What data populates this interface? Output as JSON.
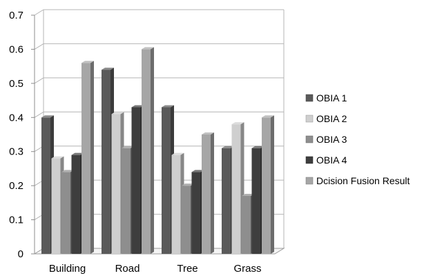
{
  "chart_data": {
    "type": "bar",
    "title": "",
    "xlabel": "",
    "ylabel": "",
    "ylim": [
      0,
      0.7
    ],
    "yticks": [
      "0",
      "0.1",
      "0.2",
      "0.3",
      "0.4",
      "0.5",
      "0.6",
      "0.7"
    ],
    "categories": [
      "Building",
      "Road",
      "Tree",
      "Grass"
    ],
    "series": [
      {
        "name": "OBIA 1",
        "color": "#5a5a5a",
        "values": [
          0.4,
          0.54,
          0.43,
          0.31
        ]
      },
      {
        "name": "OBIA 2",
        "color": "#cfcfcf",
        "values": [
          0.28,
          0.41,
          0.29,
          0.38
        ]
      },
      {
        "name": "OBIA 3",
        "color": "#8e8e8e",
        "values": [
          0.24,
          0.31,
          0.2,
          0.17
        ]
      },
      {
        "name": "OBIA 4",
        "color": "#3e3e3e",
        "values": [
          0.29,
          0.43,
          0.24,
          0.31
        ]
      },
      {
        "name": "Dcision Fusion Result",
        "color": "#a6a6a6",
        "values": [
          0.56,
          0.6,
          0.35,
          0.4
        ]
      }
    ],
    "grid": true,
    "legend": "right",
    "style": "3d-columns"
  }
}
